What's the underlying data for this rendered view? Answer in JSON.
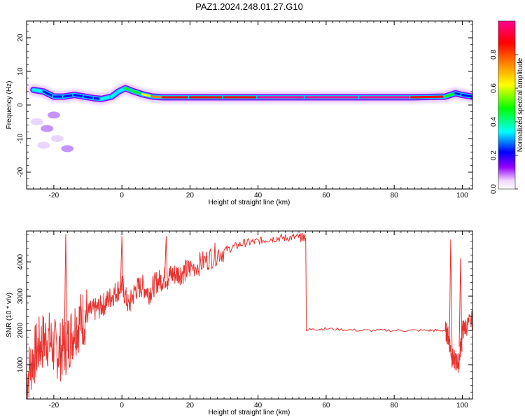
{
  "page_title": "PAZ1.2024.248.01.27.G10",
  "chart_data": [
    {
      "type": "heatmap",
      "title": "PAZ1.2024.248.01.27.G10",
      "xlabel": "Height of straight line (km)",
      "ylabel": "Frequency (Hz)",
      "xlim": [
        -28,
        103
      ],
      "ylim": [
        -25,
        25
      ],
      "xticks": [
        -20,
        0,
        20,
        40,
        60,
        80,
        100
      ],
      "yticks": [
        -20,
        -10,
        0,
        10,
        20
      ],
      "colorbar": {
        "label": "Normalized spectral amplitude",
        "range": [
          0,
          1
        ],
        "ticks": [
          "0.0",
          "0.2",
          "0.4",
          "0.6",
          "0.8"
        ],
        "colors": [
          "#ffffff",
          "#f0d8ff",
          "#9400ff",
          "#0000ff",
          "#00ffff",
          "#00ff00",
          "#ffff00",
          "#ff8000",
          "#ff0000",
          "#ff0090"
        ]
      },
      "ridge": {
        "x": [
          -26,
          -23,
          -20,
          -17,
          -14,
          -11,
          -8,
          -6,
          -3,
          -1,
          1,
          3,
          6,
          9,
          12,
          20,
          30,
          40,
          54,
          70,
          85,
          95,
          98,
          100,
          103
        ],
        "freq": [
          4.5,
          4,
          2.5,
          2.5,
          3,
          2.5,
          2,
          1.8,
          2.5,
          4,
          5,
          4.2,
          3.2,
          2.5,
          2.3,
          2.3,
          2.3,
          2.3,
          2.3,
          2.3,
          2.3,
          2.5,
          3.5,
          3,
          2.5
        ],
        "amplitude": [
          0.45,
          0.4,
          0.3,
          0.3,
          0.35,
          0.3,
          0.35,
          0.4,
          0.4,
          0.45,
          0.5,
          0.5,
          0.55,
          0.7,
          0.85,
          0.9,
          0.92,
          0.95,
          0.95,
          0.96,
          0.95,
          0.8,
          0.3,
          0.3,
          0.3
        ]
      }
    },
    {
      "type": "line",
      "xlabel": "Height of straight line (km)",
      "ylabel": "SNR (10 * v/v)",
      "xlim": [
        -28,
        103
      ],
      "ylim": [
        0,
        4900
      ],
      "xticks": [
        -20,
        0,
        20,
        40,
        60,
        80,
        100
      ],
      "yticks": [
        1000,
        2000,
        3000,
        4000
      ],
      "color": "#e8312e",
      "x": [
        -28,
        -26,
        -24,
        -22,
        -20,
        -18,
        -16,
        -14,
        -12,
        -10,
        -8,
        -6,
        -4,
        -2,
        0,
        2,
        4,
        6,
        8,
        10,
        12,
        14,
        16,
        18,
        20,
        24,
        28,
        32,
        36,
        40,
        44,
        48,
        52,
        54,
        54.2,
        60,
        70,
        80,
        90,
        95,
        96,
        97,
        98,
        99,
        100,
        101,
        103
      ],
      "snr": [
        600,
        1200,
        1600,
        1800,
        1500,
        1400,
        1600,
        2100,
        2300,
        2500,
        2600,
        2700,
        2900,
        3100,
        3300,
        2700,
        3200,
        3300,
        3100,
        3400,
        3500,
        3600,
        3650,
        3700,
        3800,
        4000,
        4250,
        4400,
        4550,
        4600,
        4680,
        4700,
        4720,
        4700,
        2020,
        2050,
        2000,
        2000,
        2000,
        2000,
        1800,
        1200,
        1100,
        1050,
        2000,
        2100,
        2300
      ],
      "spikes": [
        {
          "x": -16.5,
          "snr": 4800
        },
        {
          "x": 0,
          "snr": 4750
        },
        {
          "x": 13,
          "snr": 4750
        },
        {
          "x": 96.6,
          "snr": 4650
        },
        {
          "x": 99.5,
          "snr": 4100
        }
      ]
    }
  ]
}
